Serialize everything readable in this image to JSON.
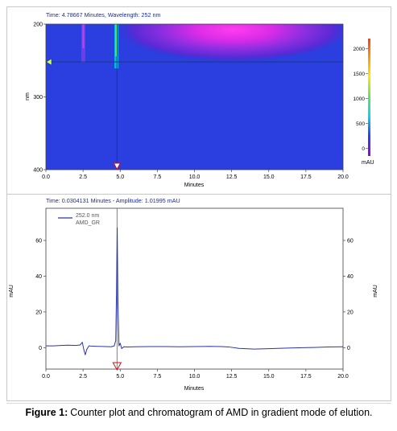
{
  "chart_data": [
    {
      "type": "heatmap",
      "readout": "Time: 4.78667 Minutes, Wavelength: 252 nm",
      "xlabel": "Minutes",
      "ylabel": "nm",
      "xlim": [
        0,
        20
      ],
      "ylim": [
        200,
        400
      ],
      "x_ticks": [
        "0.0",
        "2.5",
        "5.0",
        "7.5",
        "10.0",
        "12.5",
        "15.0",
        "17.5",
        "20.0"
      ],
      "y_ticks": [
        "200",
        "300",
        "400"
      ],
      "cursor": {
        "time": 4.78667,
        "wavelength": 252
      },
      "colorbar": {
        "label": "mAU",
        "ticks": [
          "2000",
          "1500",
          "1000",
          "500",
          "0"
        ],
        "tick_values": [
          2000,
          1500,
          1000,
          500,
          0
        ],
        "range": [
          -150,
          2200
        ],
        "colors": [
          "#ff3a1a",
          "#ff9a00",
          "#ffe800",
          "#5fe35f",
          "#00d8ff",
          "#2a3cff",
          "#a000d8"
        ]
      }
    },
    {
      "type": "line",
      "readout": "Time: 0.0304131 Minutes - Amplitude: 1.01995 mAU",
      "xlabel": "Minutes",
      "ylabel": "mAU",
      "y2label": "mAU",
      "xlim": [
        0,
        20
      ],
      "ylim": [
        -12,
        78
      ],
      "x_ticks": [
        "0.0",
        "2.5",
        "5.0",
        "7.5",
        "10.0",
        "12.5",
        "15.0",
        "17.5",
        "20.0"
      ],
      "y_ticks": [
        "0",
        "20",
        "40",
        "60"
      ],
      "y_tick_values": [
        0,
        20,
        40,
        60
      ],
      "legend": [
        "252.0 nm",
        "AMD_GR"
      ],
      "legend_position": "top-left",
      "cursor_time": 4.78667,
      "series": [
        {
          "name": "AMD_GR",
          "color": "#2a34a8",
          "x": [
            0,
            0.5,
            1,
            1.5,
            2,
            2.3,
            2.45,
            2.55,
            2.65,
            2.75,
            2.9,
            3.1,
            3.5,
            4,
            4.4,
            4.6,
            4.7,
            4.75,
            4.8,
            4.85,
            4.92,
            5.0,
            5.1,
            5.25,
            5.5,
            6,
            7,
            8,
            9,
            10,
            11,
            11.8,
            12.3,
            13,
            14,
            15,
            16,
            17,
            18,
            19,
            20
          ],
          "y": [
            1.0,
            1.0,
            1.2,
            1.4,
            1.2,
            1.5,
            3.0,
            -1.0,
            -4.0,
            -1.0,
            1.0,
            0.8,
            0.7,
            0.6,
            0.5,
            1.0,
            4.0,
            30.0,
            67.0,
            25.0,
            1.0,
            2.5,
            -0.5,
            0.5,
            0.4,
            0.5,
            0.6,
            0.6,
            0.5,
            0.6,
            0.7,
            0.6,
            0.4,
            -0.4,
            -0.8,
            -0.6,
            -0.3,
            -0.1,
            0.1,
            0.4,
            0.5
          ]
        }
      ]
    }
  ],
  "caption": {
    "label": "Figure 1:",
    "text": "Counter plot and chromatogram of AMD in gradient mode of elution."
  }
}
